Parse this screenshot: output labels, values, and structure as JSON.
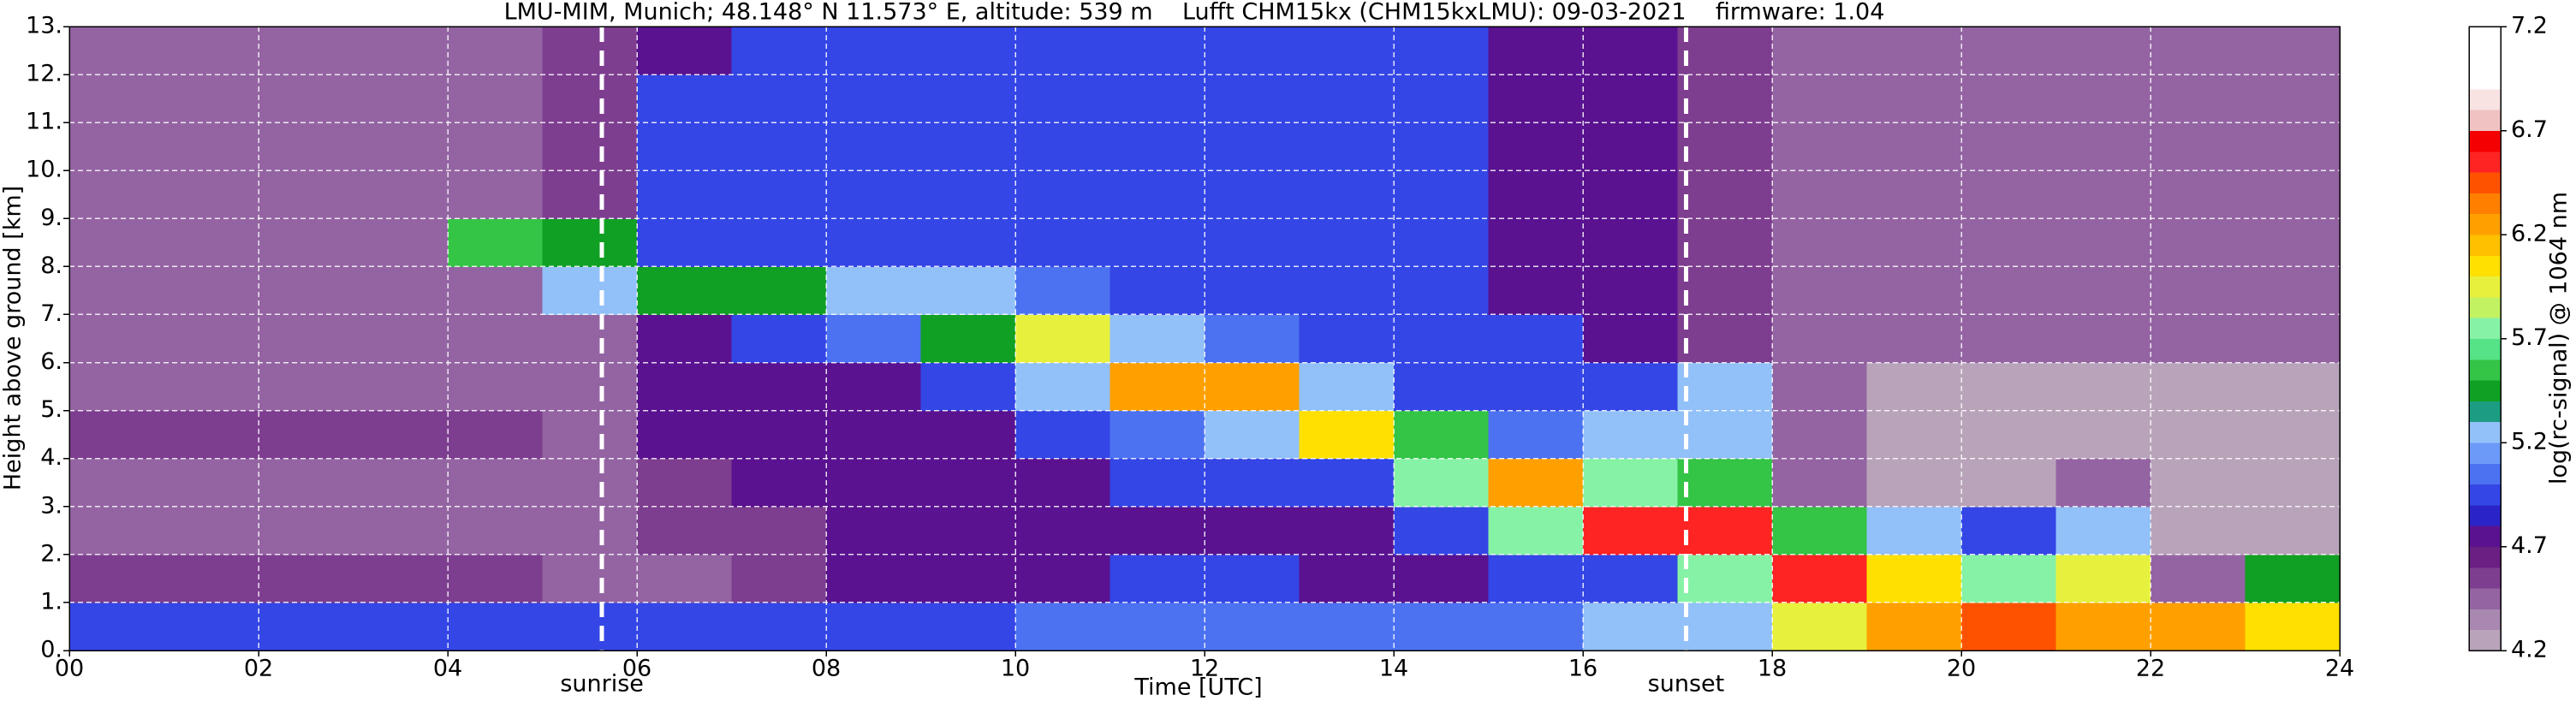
{
  "chart_data": {
    "type": "heatmap",
    "title": "LMU-MIM, Munich; 48.148° N 11.573° E, altitude: 539 m    Lufft CHM15kx (CHM15kxLMU): 09-03-2021    firmware: 1.04",
    "x_label": "Time [UTC]",
    "y_label": "Height above ground [km]",
    "colorbar_label": "log(rc-signal) @ 1064 nm",
    "xlim": [
      0,
      24
    ],
    "ylim": [
      0,
      13
    ],
    "xticks": [
      {
        "value": 0,
        "label": "00"
      },
      {
        "value": 2,
        "label": "02"
      },
      {
        "value": 4,
        "label": "04"
      },
      {
        "value": 6,
        "label": "06"
      },
      {
        "value": 8,
        "label": "08"
      },
      10,
      12,
      14,
      16,
      18,
      20,
      22,
      24
    ],
    "yticks": [
      {
        "value": 0,
        "label": "0."
      },
      {
        "value": 1,
        "label": "1."
      },
      {
        "value": 2,
        "label": "2."
      },
      {
        "value": 3,
        "label": "3."
      },
      {
        "value": 4,
        "label": "4."
      },
      {
        "value": 5,
        "label": "5."
      },
      {
        "value": 6,
        "label": "6."
      },
      {
        "value": 7,
        "label": "7."
      },
      {
        "value": 8,
        "label": "8."
      },
      {
        "value": 9,
        "label": "9."
      },
      {
        "value": 10,
        "label": "10."
      },
      {
        "value": 11,
        "label": "11."
      },
      {
        "value": 12,
        "label": "12."
      },
      {
        "value": 13,
        "label": "13."
      }
    ],
    "clim": [
      4.2,
      7.2
    ],
    "cticks": [
      4.2,
      4.7,
      5.2,
      5.7,
      6.2,
      6.7,
      7.2
    ],
    "colors": [
      "#b9a3ba",
      "#a888b0",
      "#9464a2",
      "#7e3e90",
      "#6b1f83",
      "#5a1290",
      "#2a24c8",
      "#3446e6",
      "#4c72f2",
      "#6c9af8",
      "#92c0f8",
      "#1c9c82",
      "#10a024",
      "#34c446",
      "#56e286",
      "#86f2a6",
      "#c2f262",
      "#e8f03e",
      "#ffe000",
      "#ffc000",
      "#ffa000",
      "#ff8000",
      "#ff5200",
      "#ff2424",
      "#f50000",
      "#f0c2c2",
      "#f8e2e2",
      "#ffffff",
      "#ffffff",
      "#ffffff"
    ],
    "grid": true,
    "x": [
      0.5,
      1.5,
      2.5,
      3.5,
      4.5,
      5.5,
      6.5,
      7.5,
      8.5,
      9.5,
      10.5,
      11.5,
      12.5,
      13.5,
      14.5,
      15.5,
      16.5,
      17.5,
      18.5,
      19.5,
      20.5,
      21.5,
      22.5,
      23.5
    ],
    "y": [
      0.5,
      1.5,
      2.5,
      3.5,
      4.5,
      5.5,
      6.5,
      7.5,
      8.5,
      9.5,
      10.5,
      11.5,
      12.5
    ],
    "z": [
      [
        4.9,
        4.9,
        4.9,
        4.9,
        4.9,
        4.9,
        5.0,
        5.0,
        5.0,
        5.0,
        5.1,
        5.1,
        5.1,
        5.1,
        5.1,
        5.1,
        5.2,
        5.2,
        5.9,
        6.3,
        6.4,
        6.2,
        6.2,
        6.0
      ],
      [
        4.6,
        4.6,
        4.6,
        4.6,
        4.6,
        4.5,
        4.5,
        4.6,
        4.7,
        4.7,
        4.8,
        4.9,
        4.9,
        4.8,
        4.8,
        4.9,
        5.0,
        5.8,
        6.5,
        6.0,
        5.8,
        5.9,
        4.4,
        5.4
      ],
      [
        4.4,
        4.4,
        4.4,
        4.4,
        4.5,
        4.5,
        4.6,
        4.6,
        4.7,
        4.7,
        4.8,
        4.8,
        4.8,
        4.8,
        4.9,
        5.8,
        6.5,
        6.6,
        5.6,
        5.3,
        5.0,
        5.2,
        4.3,
        4.3
      ],
      [
        4.4,
        4.4,
        4.4,
        4.4,
        4.5,
        4.5,
        4.6,
        4.7,
        4.7,
        4.8,
        4.8,
        4.9,
        4.9,
        4.9,
        5.8,
        6.2,
        5.7,
        5.6,
        4.4,
        4.3,
        4.3,
        4.5,
        4.3,
        4.3
      ],
      [
        4.6,
        4.6,
        4.6,
        4.6,
        4.6,
        4.5,
        4.7,
        4.7,
        4.8,
        4.8,
        4.9,
        5.1,
        5.2,
        6.0,
        5.6,
        5.1,
        5.2,
        5.3,
        4.4,
        4.3,
        4.3,
        4.3,
        4.3,
        4.3
      ],
      [
        4.4,
        4.4,
        4.4,
        4.4,
        4.5,
        4.5,
        4.7,
        4.8,
        4.8,
        4.9,
        5.3,
        6.2,
        6.2,
        5.3,
        5.0,
        5.0,
        4.9,
        5.2,
        4.4,
        4.3,
        4.3,
        4.3,
        4.3,
        4.3
      ],
      [
        4.4,
        4.4,
        4.4,
        4.4,
        4.5,
        4.5,
        4.8,
        4.9,
        5.1,
        5.4,
        5.9,
        5.3,
        5.1,
        5.0,
        5.0,
        4.9,
        4.8,
        4.6,
        4.4,
        4.4,
        4.4,
        4.4,
        4.4,
        4.4
      ],
      [
        4.4,
        4.4,
        4.4,
        4.4,
        4.5,
        5.3,
        5.5,
        5.4,
        5.3,
        5.2,
        5.1,
        5.0,
        5.0,
        5.0,
        4.9,
        4.8,
        4.8,
        4.6,
        4.4,
        4.4,
        4.4,
        4.4,
        4.4,
        4.4
      ],
      [
        4.4,
        4.4,
        4.4,
        4.4,
        5.6,
        5.5,
        5.0,
        5.0,
        5.0,
        5.0,
        5.0,
        5.0,
        5.0,
        4.9,
        4.9,
        4.8,
        4.8,
        4.6,
        4.4,
        4.4,
        4.4,
        4.4,
        4.4,
        4.4
      ],
      [
        4.4,
        4.4,
        4.4,
        4.4,
        4.5,
        4.6,
        4.9,
        4.9,
        5.0,
        5.0,
        5.0,
        5.0,
        5.0,
        4.9,
        4.9,
        4.8,
        4.8,
        4.6,
        4.4,
        4.4,
        4.4,
        4.4,
        4.4,
        4.4
      ],
      [
        4.4,
        4.4,
        4.4,
        4.4,
        4.5,
        4.6,
        4.9,
        4.9,
        5.0,
        5.0,
        5.0,
        5.0,
        5.0,
        4.9,
        4.9,
        4.8,
        4.8,
        4.6,
        4.4,
        4.4,
        4.4,
        4.4,
        4.4,
        4.4
      ],
      [
        4.4,
        4.4,
        4.4,
        4.4,
        4.5,
        4.6,
        4.9,
        4.9,
        5.0,
        5.0,
        5.0,
        5.0,
        5.0,
        4.9,
        4.9,
        4.8,
        4.8,
        4.6,
        4.4,
        4.4,
        4.4,
        4.4,
        4.4,
        4.4
      ],
      [
        4.4,
        4.4,
        4.4,
        4.4,
        4.5,
        4.6,
        4.8,
        4.9,
        4.9,
        5.0,
        5.0,
        5.0,
        4.9,
        4.9,
        4.9,
        4.8,
        4.7,
        4.6,
        4.4,
        4.4,
        4.4,
        4.4,
        4.4,
        4.4
      ]
    ],
    "annotations": [
      {
        "text": "sunrise",
        "x": 5.63
      },
      {
        "text": "sunset",
        "x": 17.09
      }
    ]
  }
}
